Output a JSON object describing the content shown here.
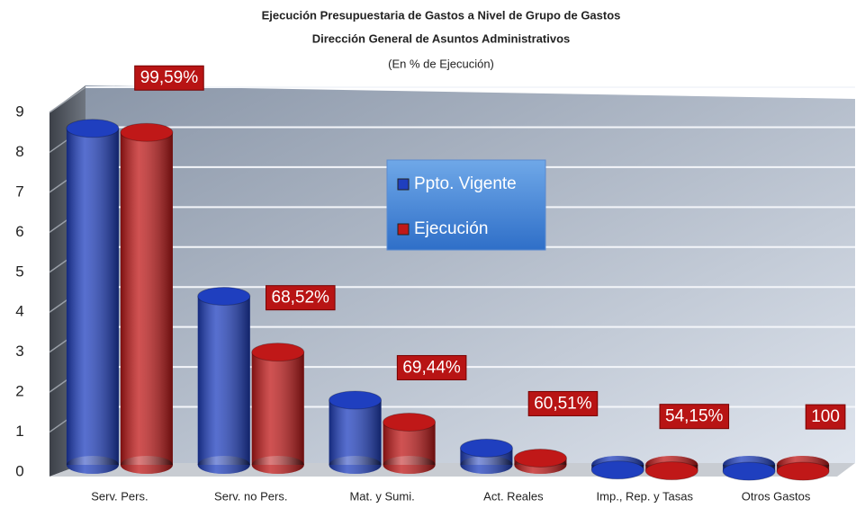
{
  "chart_data": {
    "type": "bar",
    "title": "Ejecución Presupuestaria de Gastos a Nivel de Grupo de Gastos",
    "subtitle": "Dirección General de Asuntos Administrativos",
    "note": "(En % de Ejecución)",
    "categories": [
      "Serv. Pers.",
      "Serv. no Pers.",
      "Mat. y Sumi.",
      "Act. Reales",
      "Imp., Rep. y Tasas",
      "Otros Gastos"
    ],
    "series": [
      {
        "name": "Ppto. Vigente",
        "color": "#1f3fbf",
        "values": [
          8.6,
          4.4,
          1.8,
          0.6,
          0.05,
          0.02
        ]
      },
      {
        "name": "Ejecución",
        "color": "#c01818",
        "values": [
          8.5,
          3.0,
          1.25,
          0.35,
          0.03,
          0.02
        ]
      }
    ],
    "annotations": [
      "99,59%",
      "68,52%",
      "69,44%",
      "60,51%",
      "54,15%",
      "100"
    ],
    "ylim": [
      0,
      9
    ],
    "yticks": [
      0,
      1,
      2,
      3,
      4,
      5,
      6,
      7,
      8,
      9
    ],
    "grid": true
  }
}
